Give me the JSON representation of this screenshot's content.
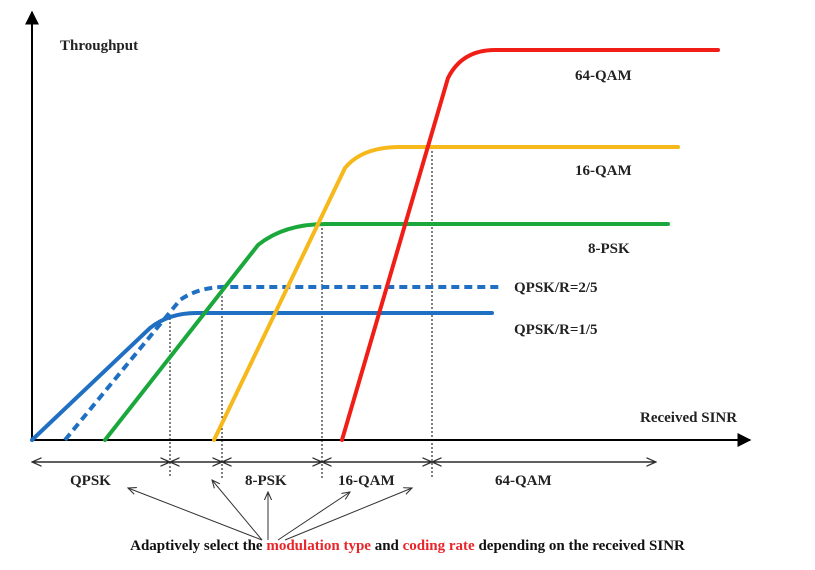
{
  "axes": {
    "y_label": "Throughput",
    "x_label": "Received SINR"
  },
  "curves": [
    {
      "name": "QPSK/R=1/5",
      "color": "#1f6fc2",
      "style": "solid"
    },
    {
      "name": "QPSK/R=2/5",
      "color": "#1f6fc2",
      "style": "dotted"
    },
    {
      "name": "8-PSK",
      "color": "#1aa83c",
      "style": "solid"
    },
    {
      "name": "16-QAM",
      "color": "#f6b81a",
      "style": "solid"
    },
    {
      "name": "64-QAM",
      "color": "#f01e16",
      "style": "solid"
    }
  ],
  "regions": [
    "QPSK",
    "8-PSK",
    "16-QAM",
    "64-QAM"
  ],
  "caption": {
    "prefix": "Adaptively select the ",
    "highlight1": "modulation type",
    "middle": " and ",
    "highlight2": "coding rate",
    "suffix": " depending on the received SINR",
    "highlight_color": "#e8262a"
  }
}
